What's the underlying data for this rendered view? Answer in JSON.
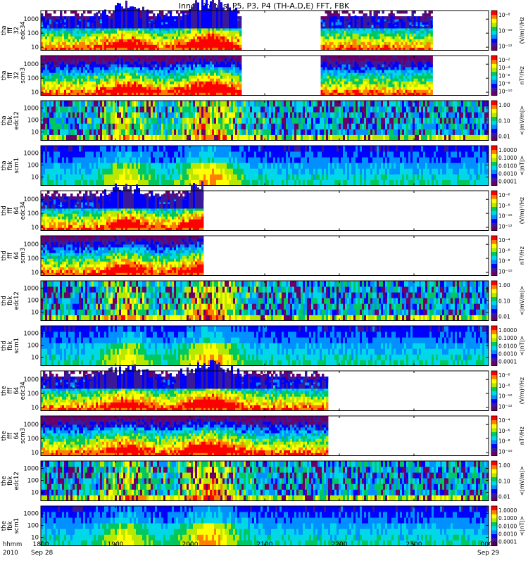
{
  "title": "Inner Probes: P5, P3, P4 (TH-A,D,E) FFT, FBK",
  "x_axis": {
    "row_label": "hhmm",
    "year_label": "2010",
    "ticks": [
      "1800",
      "1900",
      "2000",
      "2100",
      "2200",
      "2300",
      "0000"
    ],
    "date_labels": {
      "start": "Sep 28",
      "end": "Sep 29"
    }
  },
  "colormap": [
    "#6a006a",
    "#3a1a9a",
    "#0000ff",
    "#0090ff",
    "#00d8e8",
    "#00c860",
    "#b8e800",
    "#ffff00",
    "#ff8000",
    "#ff0000"
  ],
  "chart_data": [
    {
      "type": "heatmap",
      "probe": "tha",
      "ylabel": [
        "tha",
        "fff",
        "32",
        "edc34"
      ],
      "y_ticks": [
        "10",
        "100",
        "1000"
      ],
      "ylim": [
        6,
        4096
      ],
      "scale": "log",
      "data_coverage": [
        [
          "1800",
          "2040"
        ],
        [
          "2145",
          "2315"
        ]
      ],
      "colorbar_label": "(V/m)²/Hz",
      "colorbar_ticks": [
        "10⁻⁸",
        "10⁻¹⁰",
        "10⁻¹²"
      ]
    },
    {
      "type": "heatmap",
      "probe": "tha",
      "ylabel": [
        "tha",
        "fff",
        "32",
        "scm3"
      ],
      "y_ticks": [
        "10",
        "100",
        "1000"
      ],
      "ylim": [
        6,
        4096
      ],
      "scale": "log",
      "data_coverage": [
        [
          "1800",
          "2040"
        ],
        [
          "2145",
          "2315"
        ]
      ],
      "colorbar_label": "nT²/Hz",
      "colorbar_ticks": [
        "10⁻²",
        "10⁻⁴",
        "10⁻⁶",
        "10⁻⁸",
        "10⁻¹⁰"
      ]
    },
    {
      "type": "heatmap",
      "probe": "tha",
      "ylabel": [
        "tha",
        "fbk",
        "edc12"
      ],
      "y_ticks": [
        "10",
        "100",
        "1000"
      ],
      "ylim": [
        2,
        4096
      ],
      "scale": "log",
      "data_coverage": [
        [
          "1800",
          "2400"
        ]
      ],
      "colorbar_label": "<|mV/m|>",
      "colorbar_ticks": [
        "1.00",
        "0.10",
        "0.01"
      ]
    },
    {
      "type": "heatmap",
      "probe": "tha",
      "ylabel": [
        "tha",
        "fbk",
        "scm1"
      ],
      "y_ticks": [
        "10",
        "100",
        "1000"
      ],
      "ylim": [
        2,
        4096
      ],
      "scale": "log",
      "data_coverage": [
        [
          "1800",
          "2400"
        ]
      ],
      "colorbar_label": "<|nT|>",
      "colorbar_ticks": [
        "1.0000",
        "0.1000",
        "0.0100",
        "0.0010",
        "0.0001"
      ]
    },
    {
      "type": "heatmap",
      "probe": "thd",
      "ylabel": [
        "thd",
        "fff",
        "64",
        "edc34"
      ],
      "y_ticks": [
        "10",
        "100",
        "1000"
      ],
      "ylim": [
        6,
        4096
      ],
      "scale": "log",
      "data_coverage": [
        [
          "1800",
          "2010"
        ]
      ],
      "colorbar_label": "(V/m)²/Hz",
      "colorbar_ticks": [
        "10⁻⁶",
        "10⁻⁸",
        "10⁻¹⁰",
        "10⁻¹²"
      ]
    },
    {
      "type": "heatmap",
      "probe": "thd",
      "ylabel": [
        "thd",
        "fff",
        "64",
        "scm3"
      ],
      "y_ticks": [
        "10",
        "100",
        "1000"
      ],
      "ylim": [
        6,
        4096
      ],
      "scale": "log",
      "data_coverage": [
        [
          "1800",
          "2010"
        ]
      ],
      "colorbar_label": "nT²/Hz",
      "colorbar_ticks": [
        "10⁻⁴",
        "10⁻⁶",
        "10⁻⁸",
        "10⁻¹⁰"
      ]
    },
    {
      "type": "heatmap",
      "probe": "thd",
      "ylabel": [
        "thd",
        "fbk",
        "edc12"
      ],
      "y_ticks": [
        "10",
        "100",
        "1000"
      ],
      "ylim": [
        2,
        4096
      ],
      "scale": "log",
      "data_coverage": [
        [
          "1800",
          "2400"
        ]
      ],
      "colorbar_label": "<|mV/m|>",
      "colorbar_ticks": [
        "1.00",
        "0.10",
        "0.01"
      ]
    },
    {
      "type": "heatmap",
      "probe": "thd",
      "ylabel": [
        "thd",
        "fbk",
        "scm1"
      ],
      "y_ticks": [
        "10",
        "100",
        "1000"
      ],
      "ylim": [
        2,
        4096
      ],
      "scale": "log",
      "data_coverage": [
        [
          "1800",
          "2400"
        ]
      ],
      "colorbar_label": "<|nT|>",
      "colorbar_ticks": [
        "1.0000",
        "0.1000",
        "0.0100",
        "0.0010",
        "0.0001"
      ]
    },
    {
      "type": "heatmap",
      "probe": "the",
      "ylabel": [
        "the",
        "fff",
        "64",
        "edc34"
      ],
      "y_ticks": [
        "10",
        "100",
        "1000"
      ],
      "ylim": [
        6,
        4096
      ],
      "scale": "log",
      "data_coverage": [
        [
          "1800",
          "2150"
        ]
      ],
      "colorbar_label": "(V/m)²/Hz",
      "colorbar_ticks": [
        "10⁻⁶",
        "10⁻⁸",
        "10⁻¹⁰",
        "10⁻¹²"
      ]
    },
    {
      "type": "heatmap",
      "probe": "the",
      "ylabel": [
        "the",
        "fff",
        "64",
        "scm3"
      ],
      "y_ticks": [
        "10",
        "100",
        "1000"
      ],
      "ylim": [
        6,
        4096
      ],
      "scale": "log",
      "data_coverage": [
        [
          "1800",
          "2150"
        ]
      ],
      "colorbar_label": "nT²/Hz",
      "colorbar_ticks": [
        "10⁻⁴",
        "10⁻⁶",
        "10⁻⁸",
        "10⁻¹⁰"
      ]
    },
    {
      "type": "heatmap",
      "probe": "the",
      "ylabel": [
        "the",
        "fbk",
        "edc12"
      ],
      "y_ticks": [
        "10",
        "100",
        "1000"
      ],
      "ylim": [
        2,
        4096
      ],
      "scale": "log",
      "data_coverage": [
        [
          "1800",
          "2400"
        ]
      ],
      "colorbar_label": "<|mV/m|>",
      "colorbar_ticks": [
        "1.00",
        "0.10",
        "0.01"
      ]
    },
    {
      "type": "heatmap",
      "probe": "the",
      "ylabel": [
        "the",
        "fbk",
        "scm1"
      ],
      "y_ticks": [
        "10",
        "100",
        "1000"
      ],
      "ylim": [
        2,
        4096
      ],
      "scale": "log",
      "data_coverage": [
        [
          "1800",
          "2400"
        ]
      ],
      "colorbar_label": "<|nT|>",
      "colorbar_ticks": [
        "1.0000",
        "0.1000",
        "0.0100",
        "0.0010",
        "0.0001"
      ]
    }
  ]
}
